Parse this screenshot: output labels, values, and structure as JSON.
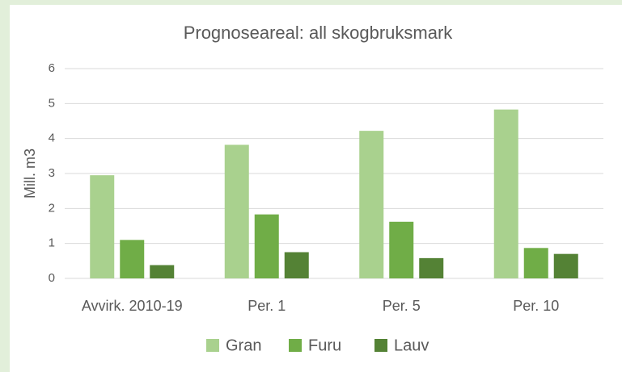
{
  "chart_data": {
    "type": "bar",
    "title": "Prognoseareal: all skogbruksmark",
    "ylabel": "Mill. m3",
    "categories": [
      "Avvirk. 2010-19",
      "Per. 1",
      "Per. 5",
      "Per. 10"
    ],
    "series": [
      {
        "name": "Gran",
        "color": "#a9d18e",
        "values": [
          2.95,
          3.82,
          4.22,
          4.83
        ]
      },
      {
        "name": "Furu",
        "color": "#70ad47",
        "values": [
          1.1,
          1.83,
          1.62,
          0.87
        ]
      },
      {
        "name": "Lauv",
        "color": "#548235",
        "values": [
          0.38,
          0.75,
          0.58,
          0.7
        ]
      }
    ],
    "ylim": [
      0,
      6
    ],
    "yticks": [
      0,
      1,
      2,
      3,
      4,
      5,
      6
    ],
    "grid": true,
    "legend": "bottom"
  }
}
